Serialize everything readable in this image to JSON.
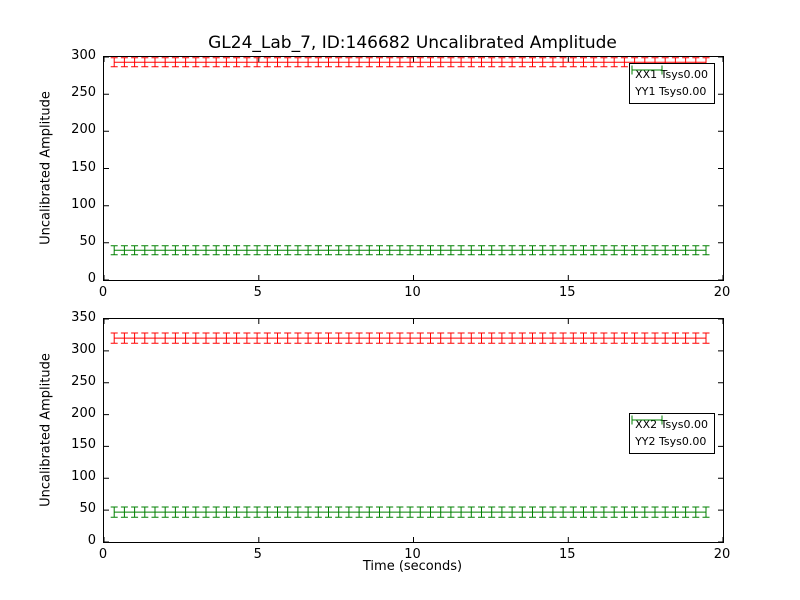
{
  "title": "GL24_Lab_7, ID:146682 Uncalibrated Amplitude",
  "chart_data": [
    {
      "type": "line",
      "subplot": "top",
      "ylabel": "Uncalibrated Amplitude",
      "xlabel": "",
      "xlim": [
        0,
        20
      ],
      "ylim": [
        0,
        300
      ],
      "xticks": [
        0,
        5,
        10,
        15,
        20
      ],
      "yticks": [
        0,
        50,
        100,
        150,
        200,
        250,
        300
      ],
      "grid": false,
      "legend_position": "upper right",
      "series": [
        {
          "name": "XX1 Tsys0.00",
          "color": "#ff0000",
          "style": "errorbar",
          "y_constant": 293,
          "yerr": 6,
          "x_start": 0.33,
          "x_end": 19.45,
          "n_points": 59
        },
        {
          "name": "YY1 Tsys0.00",
          "color": "#008000",
          "style": "errorbar",
          "y_constant": 40,
          "yerr": 6,
          "x_start": 0.33,
          "x_end": 19.45,
          "n_points": 59
        }
      ]
    },
    {
      "type": "line",
      "subplot": "bottom",
      "ylabel": "Uncalibrated Amplitude",
      "xlabel": "Time (seconds)",
      "xlim": [
        0,
        20
      ],
      "ylim": [
        0,
        350
      ],
      "xticks": [
        0,
        5,
        10,
        15,
        20
      ],
      "yticks": [
        0,
        50,
        100,
        150,
        200,
        250,
        300,
        350
      ],
      "grid": false,
      "legend_position": "center right",
      "series": [
        {
          "name": "XX2 Tsys0.00",
          "color": "#ff0000",
          "style": "errorbar",
          "y_constant": 320,
          "yerr": 8,
          "x_start": 0.33,
          "x_end": 19.45,
          "n_points": 59
        },
        {
          "name": "YY2 Tsys0.00",
          "color": "#008000",
          "style": "errorbar",
          "y_constant": 47,
          "yerr": 8,
          "x_start": 0.33,
          "x_end": 19.45,
          "n_points": 59
        }
      ]
    }
  ]
}
